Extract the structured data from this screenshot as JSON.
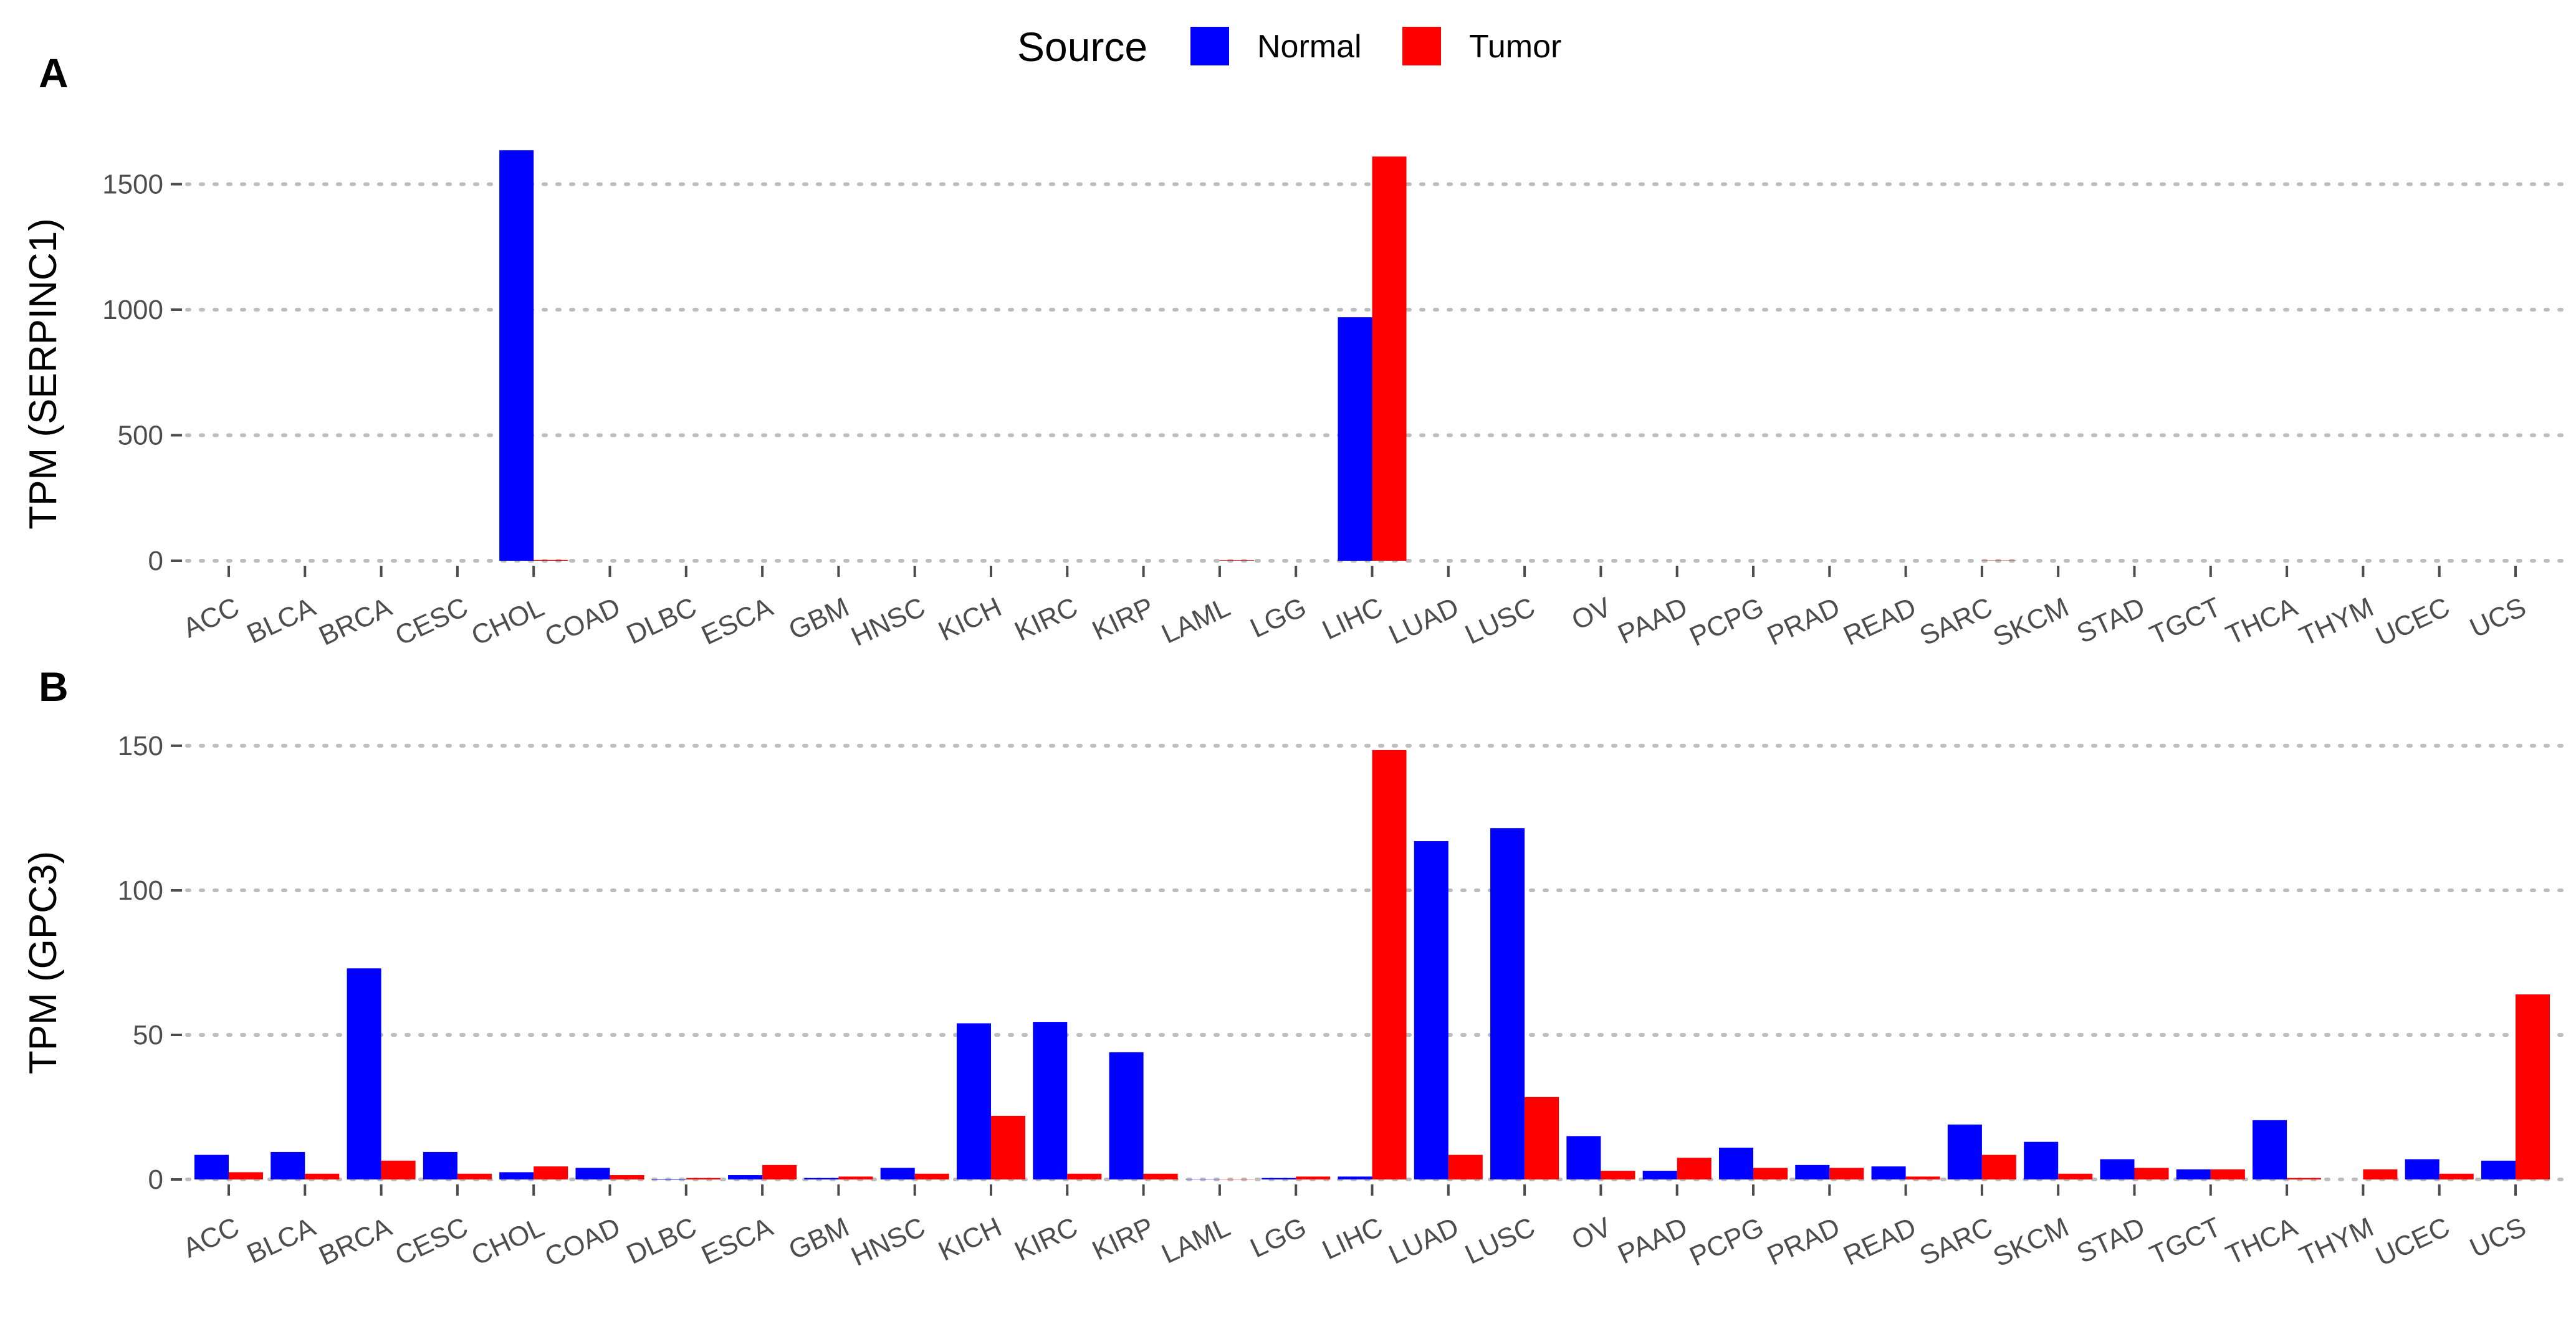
{
  "legend": {
    "title": "Source",
    "items": [
      {
        "label": "Normal",
        "color": "#0000FF"
      },
      {
        "label": "Tumor",
        "color": "#FF0000"
      }
    ]
  },
  "colors": {
    "normal": "#0000FF",
    "tumor": "#FF0000",
    "grid": "#bdbdbd",
    "tick_text": "#4d4d4d"
  },
  "chart_data": [
    {
      "type": "bar",
      "panel": "A",
      "ylabel": "TPM (SERPINC1)",
      "xlabel": "",
      "ylim": [
        0,
        1700
      ],
      "yticks": [
        0,
        500,
        1000,
        1500
      ],
      "grid": "horizontal dotted",
      "legend": "top",
      "categories": [
        "ACC",
        "BLCA",
        "BRCA",
        "CESC",
        "CHOL",
        "COAD",
        "DLBC",
        "ESCA",
        "GBM",
        "HNSC",
        "KICH",
        "KIRC",
        "KIRP",
        "LAML",
        "LGG",
        "LIHC",
        "LUAD",
        "LUSC",
        "OV",
        "PAAD",
        "PCPG",
        "PRAD",
        "READ",
        "SARC",
        "SKCM",
        "STAD",
        "TGCT",
        "THCA",
        "THYM",
        "UCEC",
        "UCS"
      ],
      "series": [
        {
          "name": "Normal",
          "values": [
            0,
            0,
            0,
            0,
            1635,
            0,
            0,
            0,
            0,
            0,
            0,
            0,
            0,
            0,
            0,
            970,
            0,
            0,
            0,
            0,
            0,
            0,
            0,
            0,
            0,
            0,
            0,
            0,
            0,
            0,
            0
          ]
        },
        {
          "name": "Tumor",
          "values": [
            0,
            0,
            0,
            0,
            3,
            0,
            0,
            0,
            0,
            0,
            0,
            0,
            0,
            2,
            0,
            1610,
            0,
            0,
            0,
            0,
            0,
            0,
            0,
            1,
            0,
            0,
            0,
            0,
            0,
            0,
            0
          ]
        }
      ]
    },
    {
      "type": "bar",
      "panel": "B",
      "ylabel": "TPM (GPC3)",
      "xlabel": "",
      "ylim": [
        0,
        153
      ],
      "yticks": [
        0,
        50,
        100,
        150
      ],
      "grid": "horizontal dotted",
      "categories": [
        "ACC",
        "BLCA",
        "BRCA",
        "CESC",
        "CHOL",
        "COAD",
        "DLBC",
        "ESCA",
        "GBM",
        "HNSC",
        "KICH",
        "KIRC",
        "KIRP",
        "LAML",
        "LGG",
        "LIHC",
        "LUAD",
        "LUSC",
        "OV",
        "PAAD",
        "PCPG",
        "PRAD",
        "READ",
        "SARC",
        "SKCM",
        "STAD",
        "TGCT",
        "THCA",
        "THYM",
        "UCEC",
        "UCS"
      ],
      "series": [
        {
          "name": "Normal",
          "values": [
            8.5,
            9.5,
            73,
            9.5,
            2.5,
            4,
            0.2,
            1.5,
            0.5,
            4,
            54,
            54.5,
            44,
            0.1,
            0.5,
            1,
            117,
            121.5,
            15,
            3,
            11,
            5,
            4.5,
            19,
            13,
            7,
            3.5,
            20.5,
            0,
            7,
            6.5
          ]
        },
        {
          "name": "Tumor",
          "values": [
            2.5,
            2,
            6.5,
            2,
            4.5,
            1.5,
            0.5,
            5,
            1,
            2,
            22,
            2,
            2,
            0.1,
            1,
            148.5,
            8.5,
            28.5,
            3,
            7.5,
            4,
            4,
            1,
            8.5,
            2,
            4,
            3.5,
            0.5,
            3.5,
            2,
            64
          ]
        }
      ]
    }
  ]
}
